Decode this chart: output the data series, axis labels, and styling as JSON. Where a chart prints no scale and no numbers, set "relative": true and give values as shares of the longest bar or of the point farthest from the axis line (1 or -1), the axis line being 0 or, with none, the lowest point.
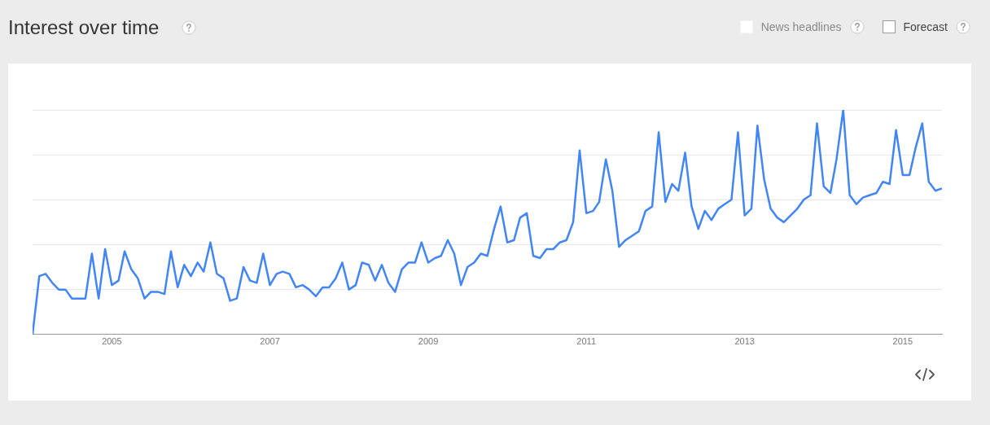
{
  "chart_data": {
    "type": "line",
    "title": "Interest over time",
    "relative": true,
    "grid": "y",
    "legend": false,
    "marker": "none",
    "line_style": "solid",
    "annotations": [
      "News headlines",
      "Forecast"
    ],
    "xlim": [
      "2004-01",
      "2015-07"
    ],
    "xticks": [
      "2005",
      "2007",
      "2009",
      "2011",
      "2013",
      "2015"
    ],
    "x": [
      "2004-01",
      "2004-02",
      "2004-03",
      "2004-04",
      "2004-05",
      "2004-06",
      "2004-07",
      "2004-08",
      "2004-09",
      "2004-10",
      "2004-11",
      "2004-12",
      "2005-01",
      "2005-02",
      "2005-03",
      "2005-04",
      "2005-05",
      "2005-06",
      "2005-07",
      "2005-08",
      "2005-09",
      "2005-10",
      "2005-11",
      "2005-12",
      "2006-01",
      "2006-02",
      "2006-03",
      "2006-04",
      "2006-05",
      "2006-06",
      "2006-07",
      "2006-08",
      "2006-09",
      "2006-10",
      "2006-11",
      "2006-12",
      "2007-01",
      "2007-02",
      "2007-03",
      "2007-04",
      "2007-05",
      "2007-06",
      "2007-07",
      "2007-08",
      "2007-09",
      "2007-10",
      "2007-11",
      "2007-12",
      "2008-01",
      "2008-02",
      "2008-03",
      "2008-04",
      "2008-05",
      "2008-06",
      "2008-07",
      "2008-08",
      "2008-09",
      "2008-10",
      "2008-11",
      "2008-12",
      "2009-01",
      "2009-02",
      "2009-03",
      "2009-04",
      "2009-05",
      "2009-06",
      "2009-07",
      "2009-08",
      "2009-09",
      "2009-10",
      "2009-11",
      "2009-12",
      "2010-01",
      "2010-02",
      "2010-03",
      "2010-04",
      "2010-05",
      "2010-06",
      "2010-07",
      "2010-08",
      "2010-09",
      "2010-10",
      "2010-11",
      "2010-12",
      "2011-01",
      "2011-02",
      "2011-03",
      "2011-04",
      "2011-05",
      "2011-06",
      "2011-07",
      "2011-08",
      "2011-09",
      "2011-10",
      "2011-11",
      "2011-12",
      "2012-01",
      "2012-02",
      "2012-03",
      "2012-04",
      "2012-05",
      "2012-06",
      "2012-07",
      "2012-08",
      "2012-09",
      "2012-10",
      "2012-11",
      "2012-12",
      "2013-01",
      "2013-02",
      "2013-03",
      "2013-04",
      "2013-05",
      "2013-06",
      "2013-07",
      "2013-08",
      "2013-09",
      "2013-10",
      "2013-11",
      "2013-12",
      "2014-01",
      "2014-02",
      "2014-03",
      "2014-04",
      "2014-05",
      "2014-06",
      "2014-07",
      "2014-08",
      "2014-09",
      "2014-10",
      "2014-11",
      "2014-12",
      "2015-01",
      "2015-02",
      "2015-03",
      "2015-04",
      "2015-05",
      "2015-06",
      "2015-07"
    ],
    "series": [
      {
        "color": "#4285f4",
        "values": [
          0,
          0.26,
          0.27,
          0.23,
          0.2,
          0.2,
          0.16,
          0.16,
          0.16,
          0.36,
          0.16,
          0.38,
          0.22,
          0.24,
          0.37,
          0.29,
          0.25,
          0.16,
          0.19,
          0.19,
          0.18,
          0.37,
          0.21,
          0.31,
          0.26,
          0.32,
          0.28,
          0.41,
          0.27,
          0.25,
          0.15,
          0.16,
          0.3,
          0.24,
          0.23,
          0.36,
          0.22,
          0.27,
          0.28,
          0.27,
          0.21,
          0.22,
          0.2,
          0.17,
          0.21,
          0.21,
          0.25,
          0.32,
          0.2,
          0.22,
          0.32,
          0.31,
          0.24,
          0.31,
          0.23,
          0.19,
          0.29,
          0.32,
          0.32,
          0.41,
          0.32,
          0.34,
          0.35,
          0.42,
          0.36,
          0.22,
          0.3,
          0.32,
          0.36,
          0.35,
          0.47,
          0.57,
          0.41,
          0.42,
          0.52,
          0.54,
          0.35,
          0.34,
          0.38,
          0.38,
          0.41,
          0.42,
          0.5,
          0.82,
          0.54,
          0.55,
          0.59,
          0.78,
          0.64,
          0.39,
          0.42,
          0.44,
          0.46,
          0.55,
          0.57,
          0.9,
          0.59,
          0.67,
          0.64,
          0.81,
          0.57,
          0.47,
          0.55,
          0.51,
          0.56,
          0.58,
          0.6,
          0.9,
          0.53,
          0.56,
          0.93,
          0.69,
          0.56,
          0.52,
          0.5,
          0.53,
          0.56,
          0.6,
          0.62,
          0.94,
          0.66,
          0.63,
          0.78,
          1,
          0.62,
          0.58,
          0.61,
          0.62,
          0.63,
          0.68,
          0.67,
          0.91,
          0.71,
          0.71,
          0.83,
          0.94,
          0.68,
          0.64,
          0.65
        ]
      }
    ]
  }
}
